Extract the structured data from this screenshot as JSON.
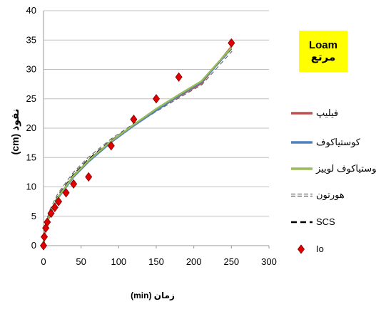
{
  "badge": {
    "line1": "Loam",
    "line2": "مرتع"
  },
  "chart_data": {
    "type": "line",
    "xlabel": "(min) زمان",
    "ylabel": "(cm) نفوذ",
    "xlim": [
      0,
      300
    ],
    "ylim": [
      0,
      40
    ],
    "x_ticks": [
      0,
      50,
      100,
      150,
      200,
      250,
      300
    ],
    "y_ticks": [
      0,
      5,
      10,
      15,
      20,
      25,
      30,
      35,
      40
    ],
    "grid": "horizontal",
    "legend_position": "right",
    "series": [
      {
        "name": "فیلیپ",
        "style": "solid",
        "color": "#c0504d",
        "x": [
          0,
          1,
          3,
          5,
          10,
          20,
          40,
          60,
          90,
          120,
          150,
          180,
          210,
          250
        ],
        "y": [
          0,
          1.5,
          3.0,
          4.0,
          5.8,
          8.3,
          11.8,
          14.4,
          17.7,
          20.5,
          23.1,
          25.4,
          27.6,
          33.9
        ]
      },
      {
        "name": "کوستیاکوف",
        "style": "solid",
        "color": "#4f81bd",
        "x": [
          0,
          1,
          3,
          5,
          10,
          20,
          40,
          60,
          90,
          120,
          150,
          180,
          210,
          250
        ],
        "y": [
          0,
          1.4,
          2.9,
          3.9,
          5.7,
          8.2,
          11.7,
          14.3,
          17.6,
          20.4,
          23.0,
          25.5,
          27.8,
          33.6
        ]
      },
      {
        "name": "کوستیاکوف لوییز",
        "style": "solid",
        "color": "#9bbb59",
        "x": [
          0,
          1,
          3,
          5,
          10,
          20,
          40,
          60,
          90,
          120,
          150,
          180,
          210,
          250
        ],
        "y": [
          0,
          1.5,
          3.0,
          4.0,
          5.9,
          8.4,
          11.9,
          14.5,
          17.8,
          20.6,
          23.3,
          25.7,
          28.0,
          33.7
        ]
      },
      {
        "name": "هورتون",
        "style": "dashed-hollow",
        "color": "#000000",
        "x": [
          0,
          1,
          3,
          5,
          10,
          20,
          40,
          60,
          90,
          120,
          150,
          180,
          210,
          250
        ],
        "y": [
          0,
          1.6,
          3.2,
          4.3,
          6.2,
          8.8,
          12.3,
          14.9,
          18.0,
          20.6,
          23.0,
          25.3,
          27.5,
          33.2
        ]
      },
      {
        "name": "SCS",
        "style": "dashed",
        "color": "#000000",
        "x": [
          0,
          1,
          3,
          5,
          10,
          20,
          40,
          60,
          90,
          120,
          150,
          180,
          210,
          250
        ],
        "y": [
          0,
          1.5,
          3.1,
          4.2,
          6.0,
          8.6,
          12.1,
          14.7,
          17.9,
          20.6,
          23.1,
          25.5,
          27.8,
          33.5
        ]
      },
      {
        "name": "Io",
        "style": "marker",
        "color": "#e00000",
        "x": [
          0,
          1,
          3,
          5,
          10,
          15,
          20,
          30,
          40,
          60,
          90,
          120,
          150,
          180,
          250
        ],
        "y": [
          0,
          1.5,
          3.0,
          4.0,
          5.5,
          6.5,
          7.5,
          9.0,
          10.5,
          11.7,
          17.0,
          21.5,
          25.0,
          28.7,
          34.5
        ]
      }
    ]
  }
}
